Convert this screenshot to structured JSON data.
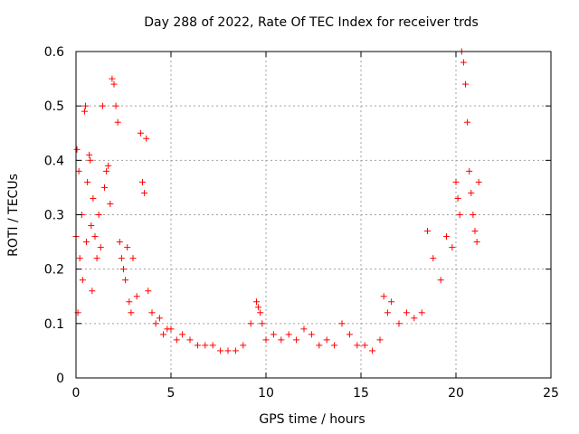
{
  "chart_data": {
    "type": "scatter",
    "title": "Day 288 of 2022, Rate Of TEC Index for receiver trds",
    "xlabel": "GPS time / hours",
    "ylabel": "ROTI / TECUs",
    "xlim": [
      0,
      25
    ],
    "ylim": [
      0,
      0.6
    ],
    "xticks": [
      "0",
      "5",
      "10",
      "15",
      "20",
      "25"
    ],
    "yticks": [
      "0",
      "0.1",
      "0.2",
      "0.3",
      "0.4",
      "0.5",
      "0.6"
    ],
    "grid": true,
    "marker": "+",
    "color": "#ff0000",
    "series": [
      {
        "x": [
          0.0,
          0.05,
          0.1,
          0.15,
          0.2,
          0.3,
          0.35,
          0.45,
          0.5,
          0.55,
          0.6,
          0.7,
          0.75,
          0.8,
          0.85,
          0.9,
          1.0,
          1.1,
          1.2,
          1.3,
          1.4,
          1.5,
          1.6,
          1.7,
          1.8,
          1.9,
          2.0,
          2.1,
          2.2,
          2.3,
          2.4,
          2.5,
          2.6,
          2.7,
          2.8,
          2.9,
          3.0,
          3.2,
          3.4,
          3.5,
          3.6,
          3.7,
          3.8,
          4.0,
          4.2,
          4.4,
          4.6,
          4.8,
          5.0,
          5.3,
          5.6,
          6.0,
          6.4,
          6.8,
          7.2,
          7.6,
          8.0,
          8.4,
          8.8,
          9.2,
          9.5,
          9.6,
          9.7,
          9.8,
          10.0,
          10.4,
          10.8,
          11.2,
          11.6,
          12.0,
          12.4,
          12.8,
          13.2,
          13.6,
          14.0,
          14.4,
          14.8,
          15.2,
          15.6,
          16.0,
          16.2,
          16.4,
          16.6,
          17.0,
          17.4,
          17.8,
          18.2,
          18.5,
          18.8,
          19.2,
          19.5,
          19.8,
          20.0,
          20.1,
          20.2,
          20.3,
          20.4,
          20.5,
          20.6,
          20.7,
          20.8,
          20.9,
          21.0,
          21.1,
          21.2
        ],
        "y": [
          0.26,
          0.42,
          0.12,
          0.38,
          0.22,
          0.3,
          0.18,
          0.49,
          0.5,
          0.25,
          0.36,
          0.41,
          0.4,
          0.28,
          0.16,
          0.33,
          0.26,
          0.22,
          0.3,
          0.24,
          0.5,
          0.35,
          0.38,
          0.39,
          0.32,
          0.55,
          0.54,
          0.5,
          0.47,
          0.25,
          0.22,
          0.2,
          0.18,
          0.24,
          0.14,
          0.12,
          0.22,
          0.15,
          0.45,
          0.36,
          0.34,
          0.44,
          0.16,
          0.12,
          0.1,
          0.11,
          0.08,
          0.09,
          0.09,
          0.07,
          0.08,
          0.07,
          0.06,
          0.06,
          0.06,
          0.05,
          0.05,
          0.05,
          0.06,
          0.1,
          0.14,
          0.13,
          0.12,
          0.1,
          0.07,
          0.08,
          0.07,
          0.08,
          0.07,
          0.09,
          0.08,
          0.06,
          0.07,
          0.06,
          0.1,
          0.08,
          0.06,
          0.06,
          0.05,
          0.07,
          0.15,
          0.12,
          0.14,
          0.1,
          0.12,
          0.11,
          0.12,
          0.27,
          0.22,
          0.18,
          0.26,
          0.24,
          0.36,
          0.33,
          0.3,
          0.6,
          0.58,
          0.54,
          0.47,
          0.38,
          0.34,
          0.3,
          0.27,
          0.25,
          0.36
        ]
      }
    ]
  }
}
